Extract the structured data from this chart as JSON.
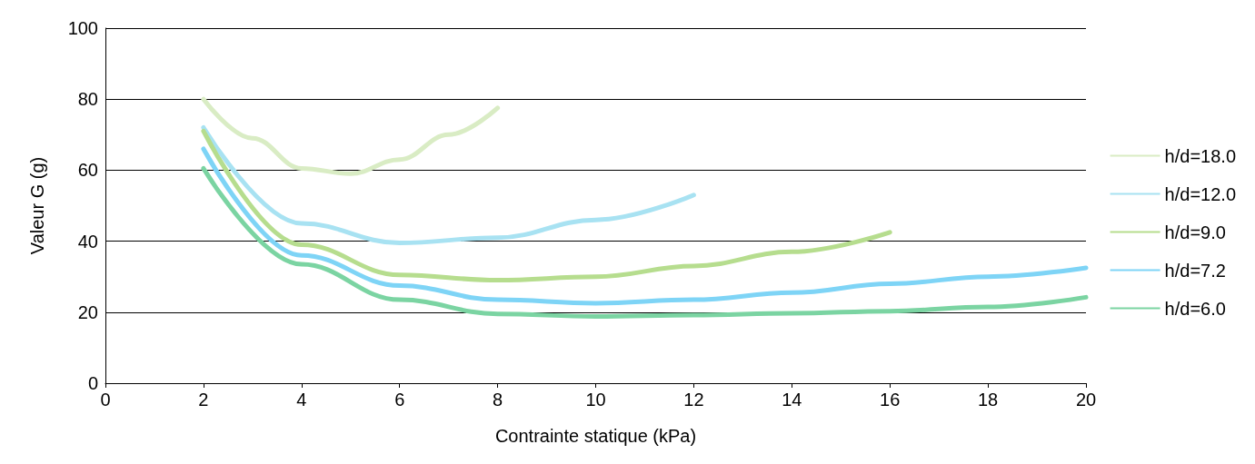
{
  "chart_data": {
    "type": "line",
    "xlabel": "Contrainte statique (kPa)",
    "ylabel": "Valeur G (g)",
    "xlim": [
      0,
      20
    ],
    "xticks": [
      0,
      2,
      4,
      6,
      8,
      10,
      12,
      14,
      16,
      18,
      20
    ],
    "ylim": [
      0,
      100
    ],
    "yticks": [
      0,
      20,
      40,
      60,
      80,
      100
    ],
    "grid": "y",
    "legend": "right",
    "marker": "none",
    "line_style": "solid",
    "series": [
      {
        "name": "h/d=18.0",
        "color": "#d9ecc4",
        "x": [
          2,
          3,
          4,
          5,
          6,
          7,
          8
        ],
        "values": [
          80,
          69,
          60.5,
          59,
          63,
          70,
          77.5
        ]
      },
      {
        "name": "h/d=12.0",
        "color": "#a8e2f2",
        "x": [
          2,
          4,
          6,
          8,
          10,
          12
        ],
        "values": [
          72,
          45,
          39.5,
          41,
          46,
          53
        ]
      },
      {
        "name": "h/d=9.0",
        "color": "#b6dd8e",
        "x": [
          2,
          4,
          6,
          8,
          10,
          12,
          14,
          16
        ],
        "values": [
          71,
          39,
          30.5,
          29,
          30,
          33,
          37,
          42.5
        ]
      },
      {
        "name": "h/d=7.2",
        "color": "#7ed4f6",
        "x": [
          2,
          4,
          6,
          8,
          10,
          12,
          14,
          16,
          18,
          20
        ],
        "values": [
          66,
          36,
          27.5,
          23.5,
          22.5,
          23.5,
          25.5,
          28,
          30,
          32.5
        ]
      },
      {
        "name": "h/d=6.0",
        "color": "#7bd4a2",
        "x": [
          2,
          4,
          6,
          8,
          10,
          12,
          14,
          16,
          18,
          20
        ],
        "values": [
          60.5,
          33.5,
          23.5,
          19.5,
          18.8,
          19.2,
          19.7,
          20.3,
          21.5,
          24.2
        ]
      }
    ]
  }
}
